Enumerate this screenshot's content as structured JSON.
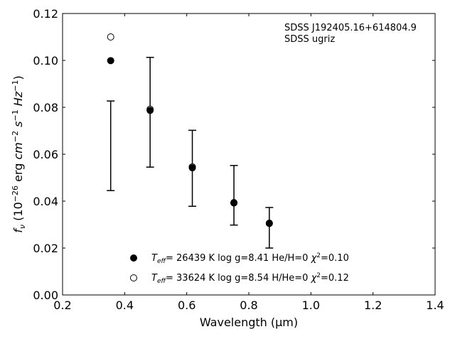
{
  "chart_data": {
    "type": "scatter",
    "xlabel": "Wavelength (μm)",
    "ylabel_parts": {
      "f": "f",
      "nu": "ν",
      "open": " (10",
      "exp1": "−26",
      "erg": " erg ",
      "cm": "cm",
      "exp2": "−2",
      "s": " s",
      "exp3": "−1",
      "hz": " Hz",
      "exp4": "−1",
      "close": ")"
    },
    "xlim": [
      0.2,
      1.4
    ],
    "ylim": [
      0.0,
      0.12
    ],
    "x_ticks": [
      "0.2",
      "0.4",
      "0.6",
      "0.8",
      "1.0",
      "1.2",
      "1.4"
    ],
    "y_ticks": [
      "0.00",
      "0.02",
      "0.04",
      "0.06",
      "0.08",
      "0.10",
      "0.12"
    ],
    "annotation": [
      "SDSS J192405.16+614804.9",
      "SDSS ugriz"
    ],
    "observed": {
      "x": [
        0.355,
        0.482,
        0.618,
        0.752,
        0.866
      ],
      "y": [
        0.0635,
        0.078,
        0.054,
        0.0425,
        0.0285
      ],
      "yerr_low": [
        0.0445,
        0.0545,
        0.0378,
        0.0298,
        0.02
      ],
      "yerr_high": [
        0.0827,
        0.1013,
        0.0702,
        0.0552,
        0.0373
      ]
    },
    "series": [
      {
        "label_T": "T",
        "label_sub": "eff",
        "label_rest": "= 26439 K  log g=8.41  He/H=0  ",
        "label_chi": "χ",
        "label_chi_exp": "2",
        "label_tail": "=0.10",
        "marker": "filled",
        "x": [
          0.355,
          0.482,
          0.618,
          0.752,
          0.866
        ],
        "y": [
          0.0999,
          0.0787,
          0.0542,
          0.0392,
          0.0305
        ]
      },
      {
        "label_T": "T",
        "label_sub": "eff",
        "label_rest": "= 33624 K  log g=8.54  H/He=0  ",
        "label_chi": "χ",
        "label_chi_exp": "2",
        "label_tail": "=0.12",
        "marker": "open",
        "x": [
          0.355,
          0.482,
          0.618,
          0.752,
          0.866
        ],
        "y": [
          0.11,
          0.0792,
          0.0546,
          0.0394,
          0.0306
        ]
      }
    ],
    "grid": false,
    "legend_position": "lower-center"
  }
}
